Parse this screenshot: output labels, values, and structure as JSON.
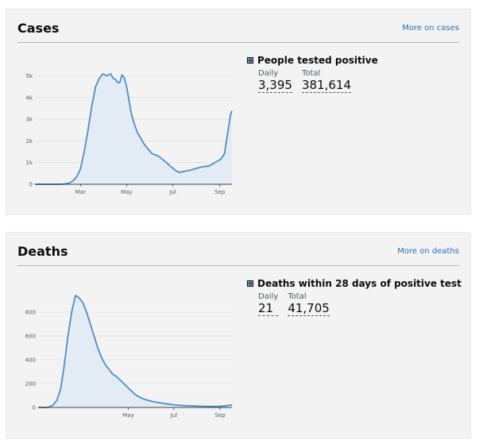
{
  "cases": {
    "title": "Cases",
    "link": "More on cases",
    "metric_label": "People tested positive",
    "daily_label": "Daily",
    "daily_value": "3,395",
    "total_label": "Total",
    "total_value": "381,614",
    "icon": "chart-legend-square-icon"
  },
  "deaths": {
    "title": "Deaths",
    "link": "More on deaths",
    "metric_label": "Deaths within 28 days of positive test",
    "daily_label": "Daily",
    "daily_value": "21",
    "total_label": "Total",
    "total_value": "41,705",
    "icon": "chart-legend-square-icon"
  },
  "colors": {
    "line": "#4a8fc6",
    "fill": "#e3ebf5",
    "link": "#1d70b8",
    "grid": "#d8d8d8"
  },
  "chart_data": [
    {
      "type": "area",
      "x_tick_labels": [
        "Mar",
        "May",
        "Jul",
        "Sep"
      ],
      "x_tick_days": [
        60,
        121,
        182,
        244
      ],
      "yticks": [
        0,
        1000,
        2000,
        3000,
        4000,
        5000
      ],
      "ytick_labels": [
        "0",
        "1k",
        "2k",
        "3k",
        "4k",
        "5k"
      ],
      "ylim": [
        0,
        5500
      ],
      "xlim": [
        0,
        260
      ],
      "grid": true,
      "x_days": [
        0,
        20,
        35,
        40,
        45,
        50,
        55,
        60,
        65,
        70,
        75,
        80,
        85,
        90,
        95,
        100,
        103,
        106,
        109,
        112,
        115,
        118,
        121,
        124,
        127,
        130,
        135,
        140,
        145,
        150,
        155,
        160,
        165,
        170,
        175,
        180,
        185,
        190,
        195,
        200,
        205,
        210,
        215,
        220,
        225,
        230,
        235,
        240,
        245,
        250,
        255,
        258,
        260
      ],
      "values": [
        0,
        0,
        0,
        20,
        50,
        150,
        350,
        700,
        1500,
        2500,
        3600,
        4500,
        4900,
        5100,
        5000,
        5100,
        4900,
        4850,
        4700,
        4700,
        5050,
        4900,
        4500,
        3900,
        3300,
        2900,
        2400,
        2100,
        1800,
        1600,
        1400,
        1350,
        1250,
        1100,
        950,
        800,
        650,
        550,
        580,
        620,
        650,
        700,
        750,
        800,
        820,
        850,
        950,
        1050,
        1150,
        1400,
        2500,
        3200,
        3395
      ]
    },
    {
      "type": "area",
      "x_tick_labels": [
        "May",
        "Jul",
        "Sep"
      ],
      "x_tick_days": [
        121,
        182,
        244
      ],
      "yticks": [
        0,
        200,
        400,
        600,
        800
      ],
      "ytick_labels": [
        "0",
        "200",
        "400",
        "600",
        "800"
      ],
      "ylim": [
        0,
        1000
      ],
      "xlim": [
        0,
        260
      ],
      "grid": true,
      "x_days": [
        0,
        5,
        10,
        15,
        20,
        25,
        30,
        35,
        40,
        45,
        50,
        55,
        60,
        65,
        70,
        75,
        80,
        85,
        90,
        95,
        100,
        105,
        110,
        115,
        120,
        125,
        130,
        135,
        140,
        145,
        150,
        155,
        160,
        165,
        170,
        175,
        180,
        185,
        190,
        195,
        200,
        210,
        220,
        230,
        240,
        250,
        260
      ],
      "values": [
        0,
        0,
        0,
        5,
        20,
        60,
        150,
        350,
        600,
        800,
        940,
        920,
        880,
        800,
        700,
        600,
        500,
        420,
        360,
        320,
        280,
        260,
        230,
        200,
        170,
        140,
        110,
        90,
        75,
        65,
        55,
        48,
        42,
        38,
        32,
        28,
        24,
        20,
        18,
        16,
        14,
        12,
        10,
        9,
        9,
        12,
        21
      ]
    }
  ]
}
